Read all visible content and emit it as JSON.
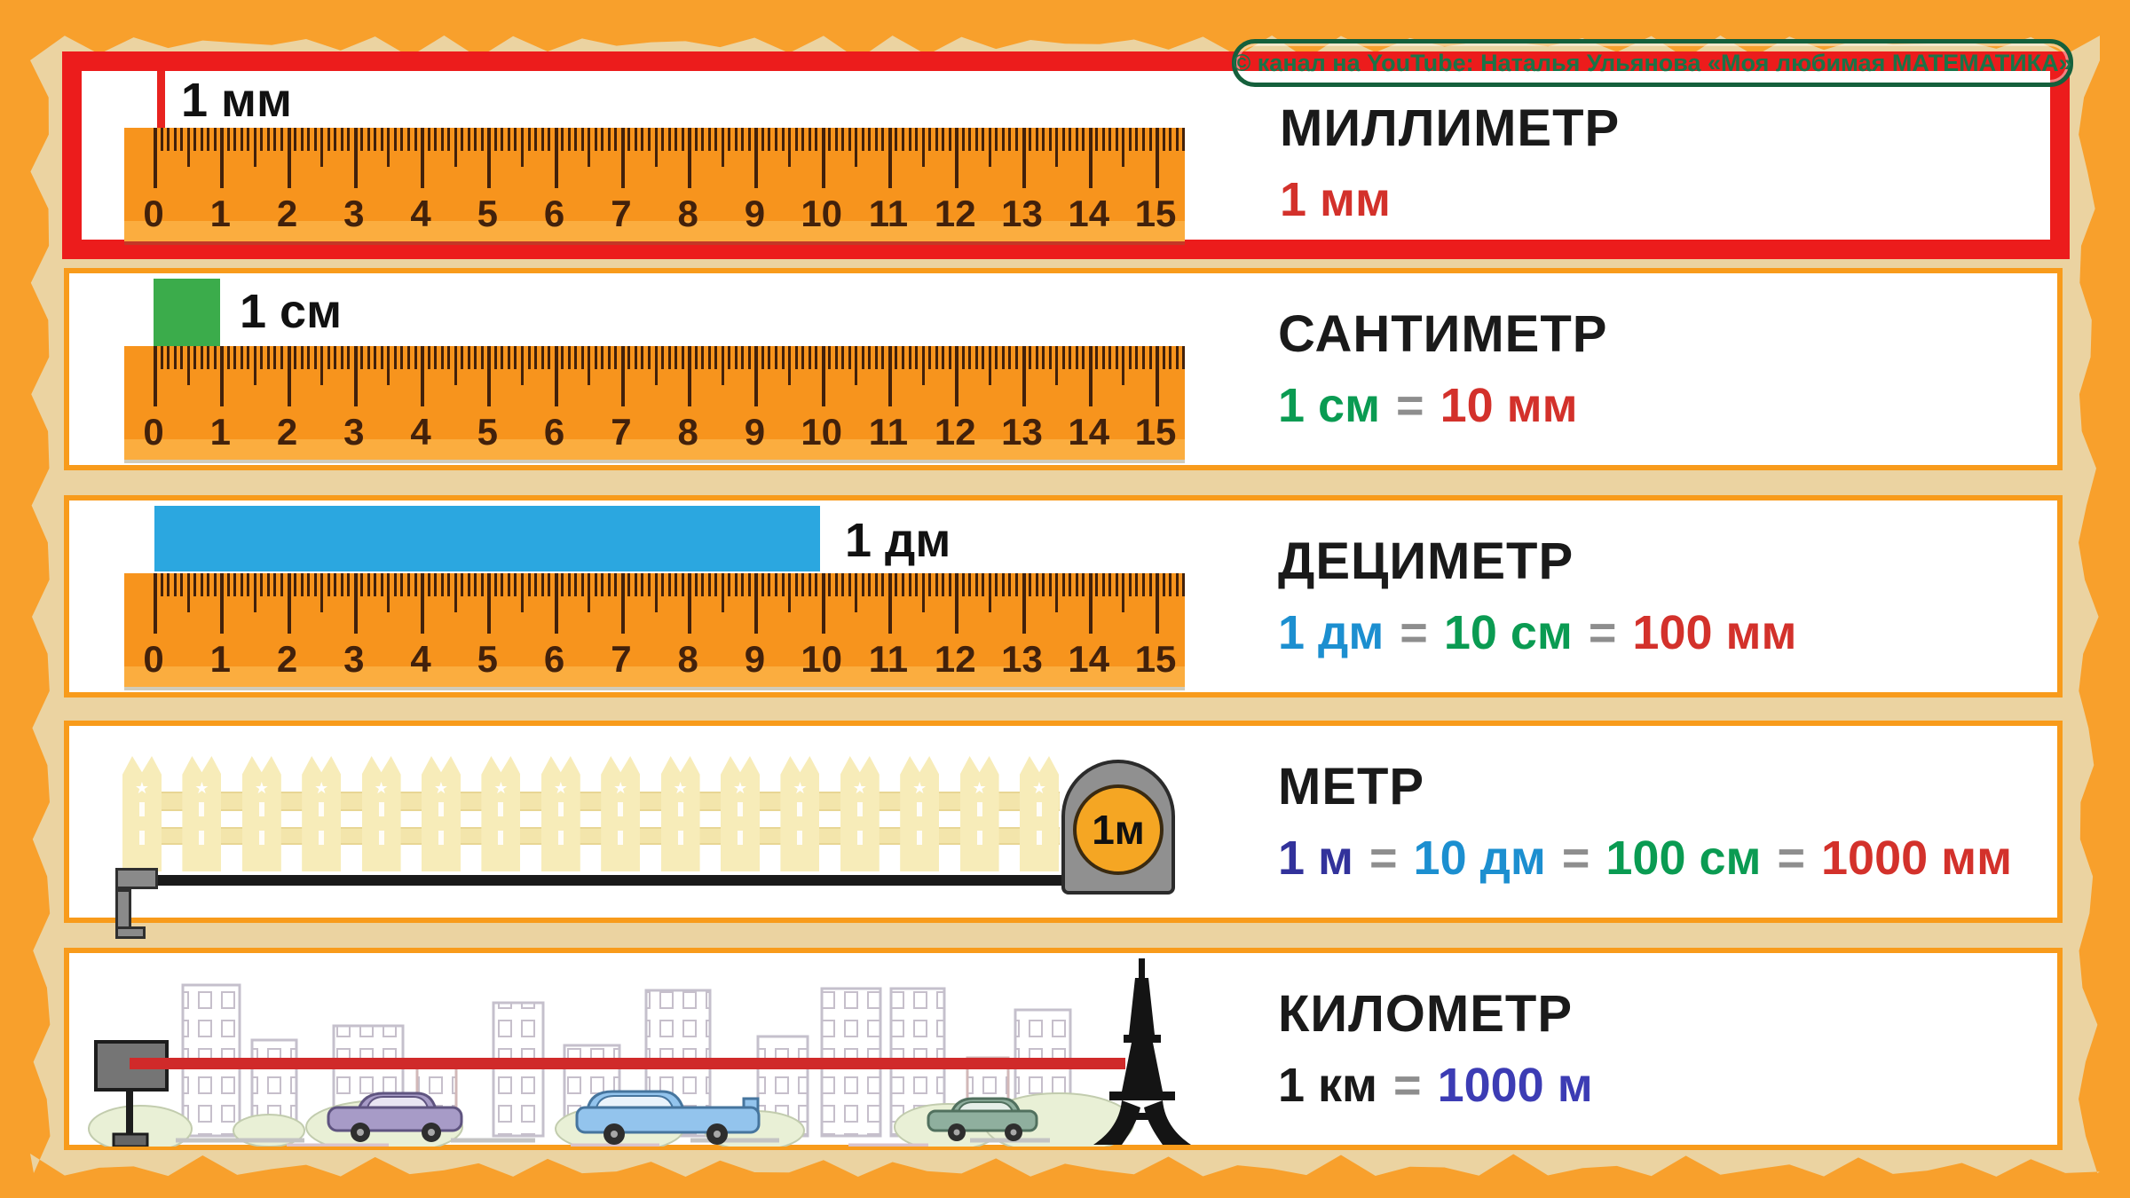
{
  "badge": {
    "label": "© канал на YouTube: Наталья Ульянова «Моя любимая МАТЕМАТИКА»"
  },
  "colors": {
    "page_orange": "#F8A02C",
    "paper_beige": "#EBD3A1",
    "panel_border": "#F89B1B",
    "highlight_red": "#EC1C1C",
    "ruler_orange": "#F7941D",
    "tick_brown": "#42210B",
    "green_square": "#3BAC4B",
    "blue_bar": "#2BA7E0",
    "text_black": "#1A1A1A",
    "red": "#D3312B",
    "green": "#0A9B52",
    "blue": "#1C8FD0",
    "navy": "#32329B",
    "km_blue": "#3C3CB4",
    "equals_gray": "#8E8E8E"
  },
  "ruler": {
    "numbers": [
      "0",
      "1",
      "2",
      "3",
      "4",
      "5",
      "6",
      "7",
      "8",
      "9",
      "10",
      "11",
      "12",
      "13",
      "14",
      "15"
    ]
  },
  "rows": {
    "mm": {
      "title": "МИЛЛИМЕТР",
      "marker_label": "1 мм",
      "equation": [
        {
          "text": "1 мм",
          "color": "red"
        }
      ]
    },
    "cm": {
      "title": "САНТИМЕТР",
      "marker_label": "1 см",
      "equation": [
        {
          "text": "1 см",
          "color": "green"
        },
        {
          "text": "=",
          "color": "eq"
        },
        {
          "text": "10 мм",
          "color": "red"
        }
      ]
    },
    "dm": {
      "title": "ДЕЦИМЕТР",
      "marker_label": "1 дм",
      "equation": [
        {
          "text": "1 дм",
          "color": "blue"
        },
        {
          "text": "=",
          "color": "eq"
        },
        {
          "text": "10 см",
          "color": "green"
        },
        {
          "text": "=",
          "color": "eq"
        },
        {
          "text": "100 мм",
          "color": "red"
        }
      ]
    },
    "m": {
      "title": "МЕТР",
      "tape_label": "1м",
      "equation": [
        {
          "text": "1 м",
          "color": "navy"
        },
        {
          "text": "=",
          "color": "eq"
        },
        {
          "text": "10 дм",
          "color": "blue"
        },
        {
          "text": "=",
          "color": "eq"
        },
        {
          "text": "100 см",
          "color": "green"
        },
        {
          "text": "=",
          "color": "eq"
        },
        {
          "text": "1000 мм",
          "color": "red"
        }
      ]
    },
    "km": {
      "title": "КИЛОМЕТР",
      "equation": [
        {
          "text": "1 км",
          "color": "black"
        },
        {
          "text": "=",
          "color": "eq"
        },
        {
          "text": "1000 м",
          "color": "kmblue"
        }
      ]
    }
  }
}
